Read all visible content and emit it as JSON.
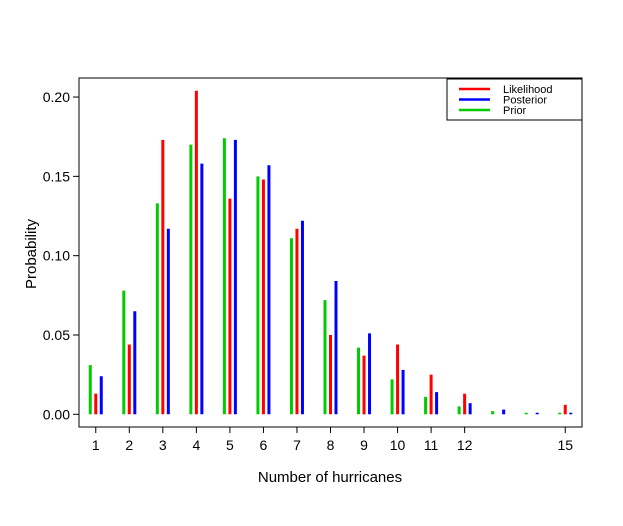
{
  "chart_data": {
    "type": "bar",
    "xlabel": "Number of hurricanes",
    "ylabel": "Probability",
    "xlim": [
      0.5,
      15.5
    ],
    "ylim": [
      -0.008,
      0.212
    ],
    "x_ticks": [
      1,
      2,
      3,
      4,
      5,
      6,
      7,
      8,
      9,
      10,
      11,
      12,
      15
    ],
    "y_ticks": [
      0.0,
      0.05,
      0.1,
      0.15,
      0.2
    ],
    "y_tick_labels": [
      "0.00",
      "0.05",
      "0.10",
      "0.15",
      "0.20"
    ],
    "x": [
      1,
      2,
      3,
      4,
      5,
      6,
      7,
      8,
      9,
      10,
      11,
      12,
      13,
      14,
      15
    ],
    "series": [
      {
        "name": "Likelihood",
        "color": "#ff0000",
        "offset": 0,
        "values": [
          0.013,
          0.044,
          0.173,
          0.204,
          0.136,
          0.148,
          0.117,
          0.05,
          0.037,
          0.044,
          0.025,
          0.013,
          0.0,
          0.0,
          0.006
        ]
      },
      {
        "name": "Posterior",
        "color": "#0000ff",
        "offset": 1,
        "values": [
          0.024,
          0.065,
          0.117,
          0.158,
          0.173,
          0.157,
          0.122,
          0.084,
          0.051,
          0.028,
          0.014,
          0.007,
          0.003,
          0.001,
          0.001
        ]
      },
      {
        "name": "Prior",
        "color": "#00cc00",
        "offset": -1,
        "values": [
          0.031,
          0.078,
          0.133,
          0.17,
          0.174,
          0.15,
          0.111,
          0.072,
          0.042,
          0.022,
          0.011,
          0.005,
          0.002,
          0.001,
          0.001
        ]
      }
    ],
    "legend": {
      "position": "top-right",
      "entries": [
        "Likelihood",
        "Posterior",
        "Prior"
      ],
      "colors": [
        "#ff0000",
        "#0000ff",
        "#00cc00"
      ]
    },
    "grid": false
  }
}
